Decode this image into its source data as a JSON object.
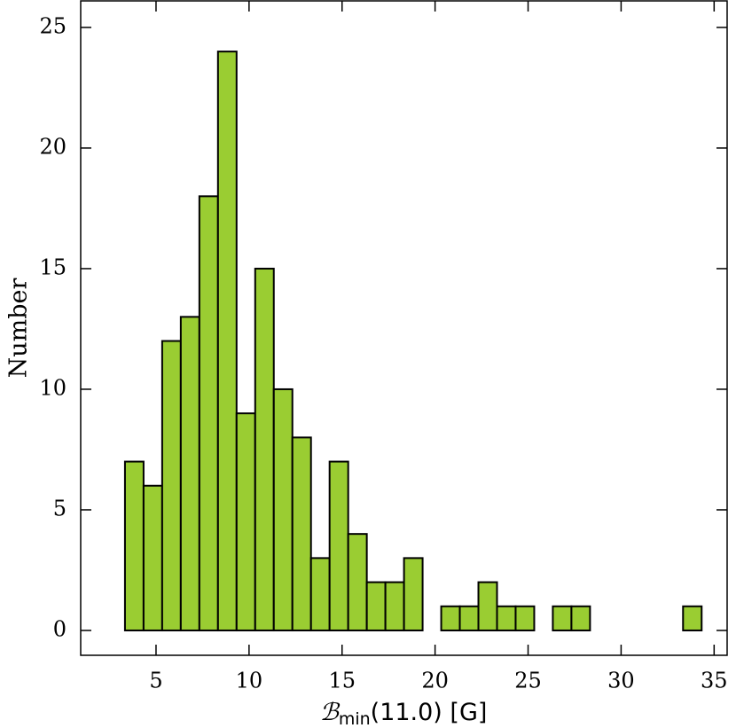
{
  "chart_data": {
    "type": "histogram",
    "xlabel": {
      "symbol": "ℬ",
      "sub": "min",
      "rest": "(11.0) [G]"
    },
    "ylabel": "Number",
    "bins": [
      3.33,
      4.33,
      5.33,
      6.33,
      7.33,
      8.33,
      9.33,
      10.33,
      11.33,
      12.33,
      13.33,
      14.33,
      15.33,
      16.33,
      17.33,
      18.33,
      19.33,
      20.33,
      21.33,
      22.33,
      23.33,
      24.33,
      25.33,
      26.33,
      27.33,
      28.33,
      29.33,
      30.33,
      31.33,
      32.33,
      33.33,
      34.33
    ],
    "values": [
      7,
      6,
      12,
      13,
      18,
      24,
      9,
      15,
      10,
      8,
      3,
      7,
      4,
      2,
      2,
      3,
      0,
      1,
      1,
      2,
      1,
      1,
      0,
      1,
      1,
      0,
      0,
      0,
      0,
      0,
      1
    ],
    "color": "#9acd32",
    "edgecolor": "#000000",
    "xlim": [
      0.95,
      35.7
    ],
    "ylim": [
      -1.03,
      26.1
    ],
    "xticks": [
      5,
      10,
      15,
      20,
      25,
      30,
      35
    ],
    "yticks": [
      0,
      5,
      10,
      15,
      20,
      25
    ]
  }
}
